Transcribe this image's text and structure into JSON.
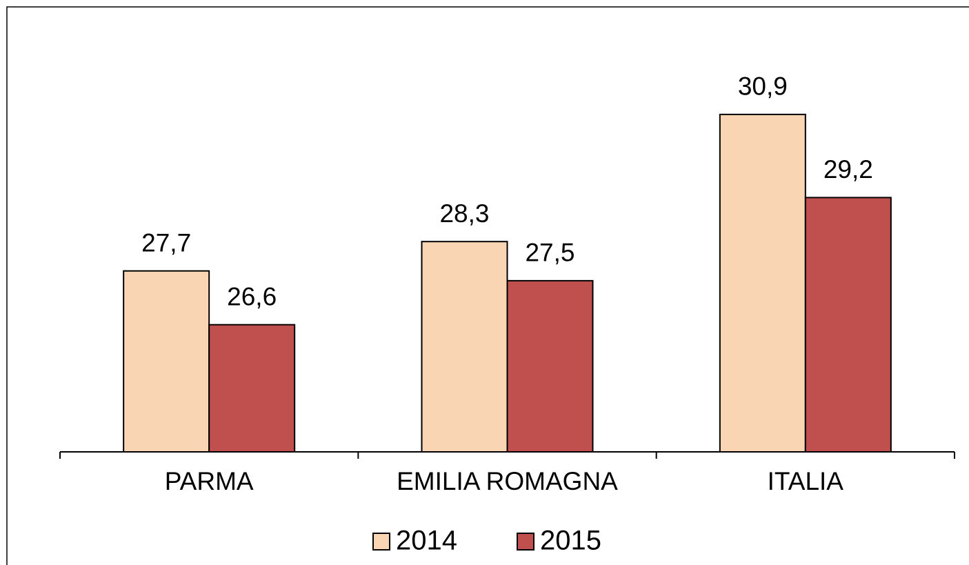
{
  "chart_data": {
    "type": "bar",
    "categories": [
      "PARMA",
      "EMILIA ROMAGNA",
      "ITALIA"
    ],
    "series": [
      {
        "name": "2014",
        "color": "#fad5b4",
        "values": [
          27.7,
          28.3,
          30.9
        ],
        "value_labels": [
          "27,7",
          "28,3",
          "30,9"
        ]
      },
      {
        "name": "2015",
        "color": "#c0504d",
        "values": [
          26.6,
          27.5,
          29.2
        ],
        "value_labels": [
          "26,6",
          "27,5",
          "29,2"
        ]
      }
    ],
    "ylim": [
      24,
      33
    ],
    "legend": "bottom"
  }
}
